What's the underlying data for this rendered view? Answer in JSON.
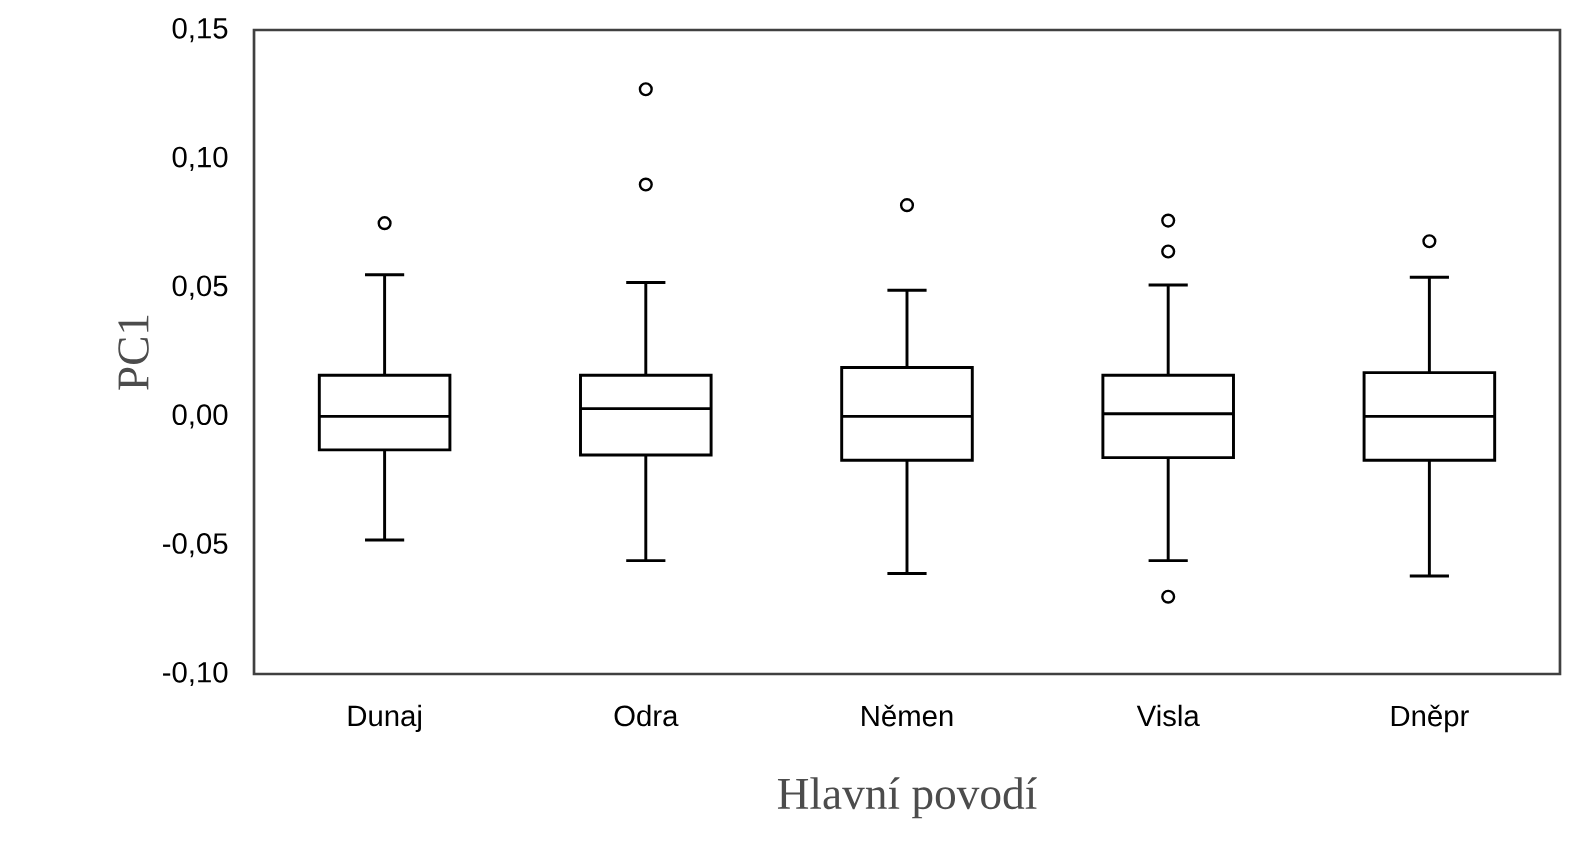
{
  "chart_data": {
    "type": "box",
    "xlabel": "Hlavní  povodí",
    "ylabel": "PC1",
    "color": "#000000",
    "marker": "circle",
    "categories": [
      "Dunaj",
      "Odra",
      "Němen",
      "Visla",
      "Dněpr"
    ],
    "boxes": [
      {
        "low": -0.048,
        "q1": -0.013,
        "median": 0.0,
        "q3": 0.016,
        "high": 0.055,
        "outliers": [
          0.075
        ]
      },
      {
        "low": -0.056,
        "q1": -0.015,
        "median": 0.003,
        "q3": 0.016,
        "high": 0.052,
        "outliers": [
          0.127,
          0.09
        ]
      },
      {
        "low": -0.061,
        "q1": -0.017,
        "median": 0.0,
        "q3": 0.019,
        "high": 0.049,
        "outliers": [
          0.082
        ]
      },
      {
        "low": -0.056,
        "q1": -0.016,
        "median": 0.001,
        "q3": 0.016,
        "high": 0.051,
        "outliers": [
          0.076,
          0.064,
          -0.07
        ]
      },
      {
        "low": -0.062,
        "q1": -0.017,
        "median": 0.0,
        "q3": 0.017,
        "high": 0.054,
        "outliers": [
          0.068
        ]
      }
    ],
    "ylim": [
      -0.1,
      0.15
    ],
    "yticks": [
      {
        "value": -0.1,
        "label": "-0,10"
      },
      {
        "value": -0.05,
        "label": "-0,05"
      },
      {
        "value": 0,
        "label": "0,00"
      },
      {
        "value": 0.05,
        "label": "0,05"
      },
      {
        "value": 0.1,
        "label": "0,10"
      },
      {
        "value": 0.15,
        "label": "0,15"
      }
    ],
    "grid": false
  }
}
